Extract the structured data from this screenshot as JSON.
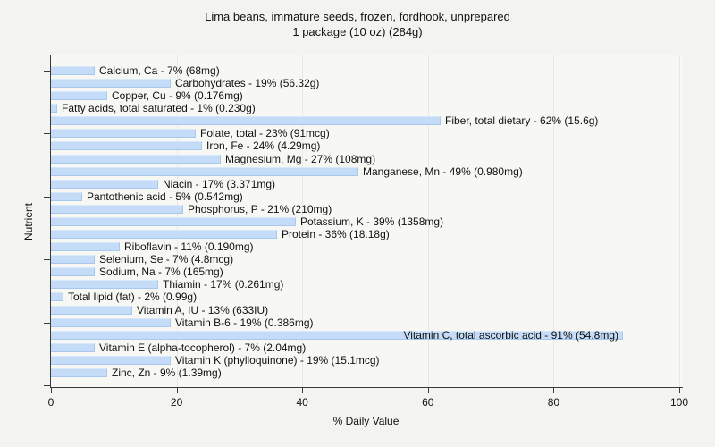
{
  "chart_data": {
    "type": "bar",
    "orientation": "horizontal",
    "title": "Lima beans, immature seeds, frozen, fordhook, unprepared",
    "subtitle": "1 package (10 oz) (284g)",
    "xlabel": "% Daily Value",
    "ylabel": "Nutrient",
    "xlim": [
      0,
      100
    ],
    "xticks": [
      0,
      20,
      40,
      60,
      80,
      100
    ],
    "grid": "vertical",
    "legend": "none",
    "bar_color": "#c4dcf8",
    "bar_border_color": "#a9c8ee",
    "bars": [
      {
        "nutrient": "Calcium, Ca",
        "percent": 7,
        "amount": "68mg",
        "label": "Calcium, Ca - 7% (68mg)"
      },
      {
        "nutrient": "Carbohydrates",
        "percent": 19,
        "amount": "56.32g",
        "label": "Carbohydrates - 19% (56.32g)"
      },
      {
        "nutrient": "Copper, Cu",
        "percent": 9,
        "amount": "0.176mg",
        "label": "Copper, Cu - 9% (0.176mg)"
      },
      {
        "nutrient": "Fatty acids, total saturated",
        "percent": 1,
        "amount": "0.230g",
        "label": "Fatty acids, total saturated - 1% (0.230g)"
      },
      {
        "nutrient": "Fiber, total dietary",
        "percent": 62,
        "amount": "15.6g",
        "label": "Fiber, total dietary - 62% (15.6g)"
      },
      {
        "nutrient": "Folate, total",
        "percent": 23,
        "amount": "91mcg",
        "label": "Folate, total - 23% (91mcg)"
      },
      {
        "nutrient": "Iron, Fe",
        "percent": 24,
        "amount": "4.29mg",
        "label": "Iron, Fe - 24% (4.29mg)"
      },
      {
        "nutrient": "Magnesium, Mg",
        "percent": 27,
        "amount": "108mg",
        "label": "Magnesium, Mg - 27% (108mg)"
      },
      {
        "nutrient": "Manganese, Mn",
        "percent": 49,
        "amount": "0.980mg",
        "label": "Manganese, Mn - 49% (0.980mg)"
      },
      {
        "nutrient": "Niacin",
        "percent": 17,
        "amount": "3.371mg",
        "label": "Niacin - 17% (3.371mg)"
      },
      {
        "nutrient": "Pantothenic acid",
        "percent": 5,
        "amount": "0.542mg",
        "label": "Pantothenic acid - 5% (0.542mg)"
      },
      {
        "nutrient": "Phosphorus, P",
        "percent": 21,
        "amount": "210mg",
        "label": "Phosphorus, P - 21% (210mg)"
      },
      {
        "nutrient": "Potassium, K",
        "percent": 39,
        "amount": "1358mg",
        "label": "Potassium, K - 39% (1358mg)"
      },
      {
        "nutrient": "Protein",
        "percent": 36,
        "amount": "18.18g",
        "label": "Protein - 36% (18.18g)"
      },
      {
        "nutrient": "Riboflavin",
        "percent": 11,
        "amount": "0.190mg",
        "label": "Riboflavin - 11% (0.190mg)"
      },
      {
        "nutrient": "Selenium, Se",
        "percent": 7,
        "amount": "4.8mcg",
        "label": "Selenium, Se - 7% (4.8mcg)"
      },
      {
        "nutrient": "Sodium, Na",
        "percent": 7,
        "amount": "165mg",
        "label": "Sodium, Na - 7% (165mg)"
      },
      {
        "nutrient": "Thiamin",
        "percent": 17,
        "amount": "0.261mg",
        "label": "Thiamin - 17% (0.261mg)"
      },
      {
        "nutrient": "Total lipid (fat)",
        "percent": 2,
        "amount": "0.99g",
        "label": "Total lipid (fat) - 2% (0.99g)"
      },
      {
        "nutrient": "Vitamin A, IU",
        "percent": 13,
        "amount": "633IU",
        "label": "Vitamin A, IU - 13% (633IU)"
      },
      {
        "nutrient": "Vitamin B-6",
        "percent": 19,
        "amount": "0.386mg",
        "label": "Vitamin B-6 - 19% (0.386mg)"
      },
      {
        "nutrient": "Vitamin C, total ascorbic acid",
        "percent": 91,
        "amount": "54.8mg",
        "label": "Vitamin C, total ascorbic acid - 91% (54.8mg)",
        "label_inside": true
      },
      {
        "nutrient": "Vitamin E (alpha-tocopherol)",
        "percent": 7,
        "amount": "2.04mg",
        "label": "Vitamin E (alpha-tocopherol) - 7% (2.04mg)"
      },
      {
        "nutrient": "Vitamin K (phylloquinone)",
        "percent": 19,
        "amount": "15.1mcg",
        "label": "Vitamin K (phylloquinone) - 19% (15.1mcg)"
      },
      {
        "nutrient": "Zinc, Zn",
        "percent": 9,
        "amount": "1.39mg",
        "label": "Zinc, Zn - 9% (1.39mg)"
      }
    ]
  }
}
